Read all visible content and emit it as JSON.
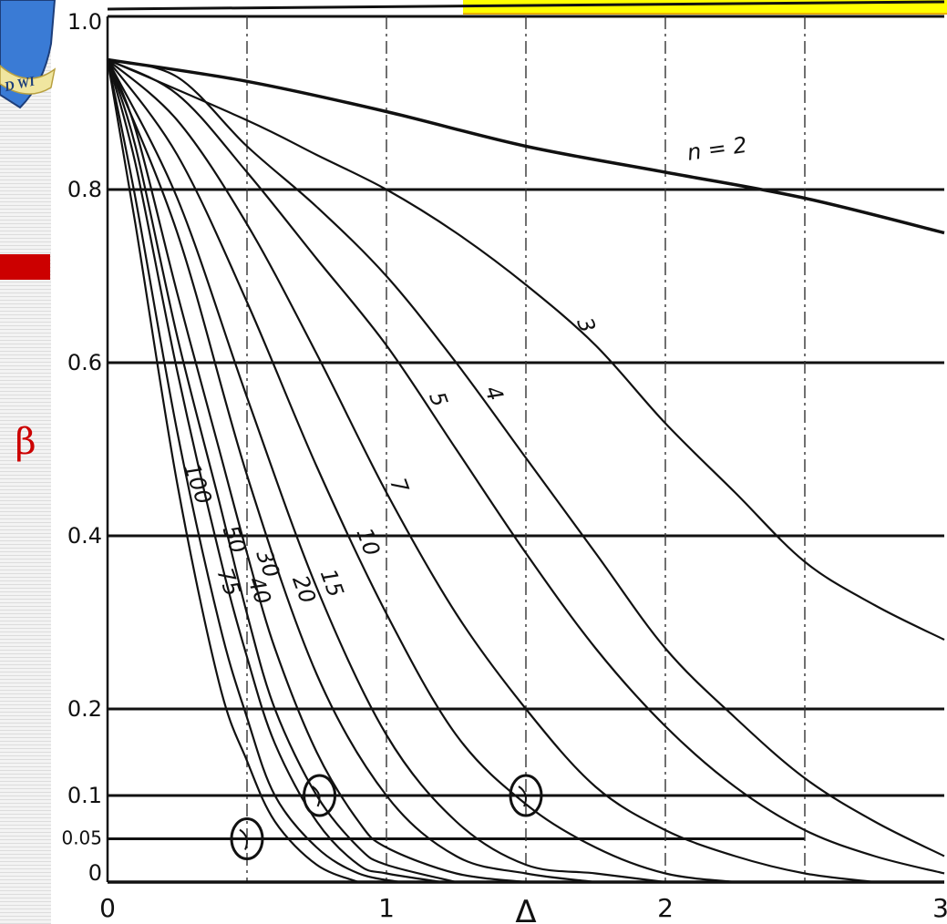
{
  "page": {
    "ylabel": "β",
    "colors": {
      "accent_red": "#cc0000",
      "banner_yellow": "#ffff00",
      "ink": "#111111"
    }
  },
  "logo": {
    "name": "university-shield-logo",
    "text": "D WI"
  },
  "chart_data": {
    "type": "line",
    "title": "",
    "xlabel": "Δ",
    "ylabel": "β",
    "xlim": [
      0,
      3
    ],
    "ylim": [
      0,
      1.0
    ],
    "grid": true,
    "x_ticks": [
      {
        "value": 0,
        "label": "0"
      },
      {
        "value": 1,
        "label": "1"
      },
      {
        "value": 2,
        "label": "2"
      },
      {
        "value": 3,
        "label": "3"
      }
    ],
    "y_ticks": [
      {
        "value": 0,
        "label": "0"
      },
      {
        "value": 0.05,
        "label": "0.05"
      },
      {
        "value": 0.1,
        "label": "0.1"
      },
      {
        "value": 0.2,
        "label": "0.2"
      },
      {
        "value": 0.4,
        "label": "0.4"
      },
      {
        "value": 0.6,
        "label": "0.6"
      },
      {
        "value": 0.8,
        "label": "0.8"
      },
      {
        "value": 1.0,
        "label": "1.0"
      }
    ],
    "vertical_gridlines": [
      0.5,
      1,
      1.5,
      2,
      2.5
    ],
    "series": [
      {
        "name": "n = 2",
        "label": "n = 2",
        "label_at": 2.05,
        "values": [
          [
            0,
            0.95
          ],
          [
            0.5,
            0.925
          ],
          [
            1,
            0.89
          ],
          [
            1.5,
            0.85
          ],
          [
            2,
            0.82
          ],
          [
            2.5,
            0.79
          ],
          [
            3,
            0.75
          ]
        ]
      },
      {
        "name": "3",
        "label": "3",
        "label_at": 1.65,
        "values": [
          [
            0,
            0.95
          ],
          [
            0.5,
            0.88
          ],
          [
            0.75,
            0.84
          ],
          [
            1,
            0.8
          ],
          [
            1.25,
            0.75
          ],
          [
            1.5,
            0.69
          ],
          [
            1.75,
            0.62
          ],
          [
            2,
            0.53
          ],
          [
            2.25,
            0.45
          ],
          [
            2.5,
            0.37
          ],
          [
            2.75,
            0.32
          ],
          [
            3,
            0.28
          ]
        ]
      },
      {
        "name": "4",
        "label": "4",
        "label_at": 1.32,
        "values": [
          [
            0,
            0.95
          ],
          [
            0.25,
            0.93
          ],
          [
            0.5,
            0.85
          ],
          [
            0.75,
            0.78
          ],
          [
            1,
            0.7
          ],
          [
            1.25,
            0.6
          ],
          [
            1.5,
            0.49
          ],
          [
            1.75,
            0.38
          ],
          [
            2,
            0.27
          ],
          [
            2.25,
            0.19
          ],
          [
            2.5,
            0.12
          ],
          [
            2.75,
            0.07
          ],
          [
            3,
            0.03
          ]
        ]
      },
      {
        "name": "5",
        "label": "5",
        "label_at": 1.12,
        "values": [
          [
            0,
            0.95
          ],
          [
            0.25,
            0.91
          ],
          [
            0.5,
            0.82
          ],
          [
            0.75,
            0.72
          ],
          [
            1,
            0.62
          ],
          [
            1.25,
            0.5
          ],
          [
            1.5,
            0.38
          ],
          [
            1.75,
            0.27
          ],
          [
            2,
            0.18
          ],
          [
            2.25,
            0.11
          ],
          [
            2.5,
            0.06
          ],
          [
            2.75,
            0.03
          ],
          [
            3,
            0.01
          ]
        ]
      },
      {
        "name": "7",
        "label": "7",
        "label_at": 0.98,
        "values": [
          [
            0,
            0.95
          ],
          [
            0.25,
            0.88
          ],
          [
            0.5,
            0.76
          ],
          [
            0.75,
            0.61
          ],
          [
            1,
            0.45
          ],
          [
            1.25,
            0.31
          ],
          [
            1.5,
            0.2
          ],
          [
            1.75,
            0.11
          ],
          [
            2,
            0.06
          ],
          [
            2.25,
            0.03
          ],
          [
            2.5,
            0.01
          ],
          [
            2.75,
            0.0
          ]
        ]
      },
      {
        "name": "10",
        "label": "10",
        "label_at": 0.86,
        "values": [
          [
            0,
            0.95
          ],
          [
            0.25,
            0.84
          ],
          [
            0.5,
            0.67
          ],
          [
            0.75,
            0.48
          ],
          [
            1,
            0.31
          ],
          [
            1.25,
            0.17
          ],
          [
            1.5,
            0.09
          ],
          [
            1.75,
            0.04
          ],
          [
            2,
            0.01
          ],
          [
            2.25,
            0.0
          ]
        ]
      },
      {
        "name": "15",
        "label": "15",
        "label_at": 0.73,
        "values": [
          [
            0,
            0.95
          ],
          [
            0.25,
            0.79
          ],
          [
            0.5,
            0.56
          ],
          [
            0.75,
            0.34
          ],
          [
            1,
            0.17
          ],
          [
            1.25,
            0.07
          ],
          [
            1.5,
            0.02
          ],
          [
            1.75,
            0.01
          ],
          [
            2,
            0.0
          ]
        ]
      },
      {
        "name": "20",
        "label": "20",
        "label_at": 0.63,
        "values": [
          [
            0,
            0.95
          ],
          [
            0.25,
            0.75
          ],
          [
            0.5,
            0.47
          ],
          [
            0.75,
            0.24
          ],
          [
            1,
            0.1
          ],
          [
            1.25,
            0.03
          ],
          [
            1.5,
            0.01
          ],
          [
            1.75,
            0.0
          ]
        ]
      },
      {
        "name": "30",
        "label": "30",
        "label_at": 0.5,
        "values": [
          [
            0,
            0.95
          ],
          [
            0.1,
            0.87
          ],
          [
            0.25,
            0.68
          ],
          [
            0.4,
            0.5
          ],
          [
            0.5,
            0.38
          ],
          [
            0.6,
            0.27
          ],
          [
            0.75,
            0.15
          ],
          [
            0.9,
            0.07
          ],
          [
            1,
            0.04
          ],
          [
            1.25,
            0.01
          ],
          [
            1.5,
            0.0
          ]
        ]
      },
      {
        "name": "40",
        "label": "40",
        "label_at": 0.47,
        "values": [
          [
            0,
            0.95
          ],
          [
            0.1,
            0.85
          ],
          [
            0.25,
            0.63
          ],
          [
            0.4,
            0.44
          ],
          [
            0.5,
            0.31
          ],
          [
            0.6,
            0.2
          ],
          [
            0.75,
            0.1
          ],
          [
            0.9,
            0.04
          ],
          [
            1,
            0.02
          ],
          [
            1.25,
            0.0
          ]
        ]
      },
      {
        "name": "50",
        "label": "50",
        "label_at": 0.38,
        "values": [
          [
            0,
            0.95
          ],
          [
            0.1,
            0.83
          ],
          [
            0.25,
            0.59
          ],
          [
            0.4,
            0.38
          ],
          [
            0.5,
            0.26
          ],
          [
            0.6,
            0.16
          ],
          [
            0.75,
            0.07
          ],
          [
            0.9,
            0.02
          ],
          [
            1,
            0.01
          ],
          [
            1.2,
            0.0
          ]
        ]
      },
      {
        "name": "75",
        "label": "75",
        "label_at": 0.36,
        "values": [
          [
            0,
            0.95
          ],
          [
            0.1,
            0.79
          ],
          [
            0.25,
            0.52
          ],
          [
            0.4,
            0.3
          ],
          [
            0.5,
            0.19
          ],
          [
            0.6,
            0.1
          ],
          [
            0.75,
            0.04
          ],
          [
            0.9,
            0.01
          ],
          [
            1.05,
            0.0
          ]
        ]
      },
      {
        "name": "100",
        "label": "100",
        "label_at": 0.24,
        "values": [
          [
            0,
            0.95
          ],
          [
            0.1,
            0.76
          ],
          [
            0.25,
            0.46
          ],
          [
            0.4,
            0.23
          ],
          [
            0.5,
            0.14
          ],
          [
            0.6,
            0.07
          ],
          [
            0.75,
            0.02
          ],
          [
            0.9,
            0.0
          ]
        ]
      }
    ],
    "annotations": [
      {
        "type": "circle",
        "x": 0.5,
        "y": 0.05
      },
      {
        "type": "circle",
        "x": 0.76,
        "y": 0.1
      },
      {
        "type": "circle",
        "x": 1.5,
        "y": 0.1
      }
    ]
  }
}
